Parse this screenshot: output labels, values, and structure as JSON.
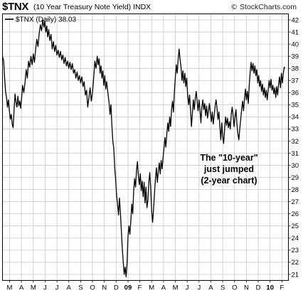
{
  "header": {
    "symbol": "$TNX",
    "description": "(10 Year Treasury Note Yield)",
    "exchange": "INDX",
    "watermark": "StockCharts.com",
    "copyright": "©"
  },
  "chart_data": {
    "type": "line",
    "title": "$TNX (10 Year Treasury Note Yield) INDX",
    "legend": "$TNX (Daily) 38.03",
    "legend_position": "top-left",
    "grid": true,
    "ylim": [
      20.5,
      42.5
    ],
    "y_ticks": [
      21,
      22,
      23,
      24,
      25,
      26,
      27,
      28,
      29,
      30,
      31,
      32,
      33,
      34,
      35,
      36,
      37,
      38,
      39,
      40,
      41,
      42
    ],
    "x_ticks": [
      {
        "label": "M",
        "i": 0.6
      },
      {
        "label": "A",
        "i": 1.6
      },
      {
        "label": "M",
        "i": 2.6
      },
      {
        "label": "J",
        "i": 3.6
      },
      {
        "label": "J",
        "i": 4.6
      },
      {
        "label": "A",
        "i": 5.6
      },
      {
        "label": "S",
        "i": 6.6
      },
      {
        "label": "O",
        "i": 7.6
      },
      {
        "label": "N",
        "i": 8.6
      },
      {
        "label": "D",
        "i": 9.6
      },
      {
        "label": "09",
        "i": 10.6,
        "bold": true
      },
      {
        "label": "F",
        "i": 11.6
      },
      {
        "label": "M",
        "i": 12.6
      },
      {
        "label": "A",
        "i": 13.6
      },
      {
        "label": "M",
        "i": 14.6
      },
      {
        "label": "J",
        "i": 15.6
      },
      {
        "label": "J",
        "i": 16.6
      },
      {
        "label": "A",
        "i": 17.6
      },
      {
        "label": "S",
        "i": 18.6
      },
      {
        "label": "O",
        "i": 19.6
      },
      {
        "label": "N",
        "i": 20.6
      },
      {
        "label": "D",
        "i": 21.6
      },
      {
        "label": "10",
        "i": 22.6,
        "bold": true
      },
      {
        "label": "F",
        "i": 23.6
      }
    ],
    "x_range": [
      0,
      24.15
    ],
    "series": [
      {
        "values": [
          [
            0.0,
            39.0
          ],
          [
            0.1,
            38.6
          ],
          [
            0.18,
            37.2
          ],
          [
            0.26,
            36.1
          ],
          [
            0.34,
            35.6
          ],
          [
            0.42,
            34.8
          ],
          [
            0.5,
            35.4
          ],
          [
            0.58,
            34.5
          ],
          [
            0.66,
            33.8
          ],
          [
            0.74,
            34.2
          ],
          [
            0.82,
            33.4
          ],
          [
            0.9,
            33.1
          ],
          [
            0.98,
            34.6
          ],
          [
            1.06,
            35.9
          ],
          [
            1.14,
            35.2
          ],
          [
            1.22,
            34.8
          ],
          [
            1.3,
            35.7
          ],
          [
            1.38,
            34.9
          ],
          [
            1.46,
            35.3
          ],
          [
            1.54,
            34.7
          ],
          [
            1.62,
            35.6
          ],
          [
            1.7,
            36.6
          ],
          [
            1.8,
            36.0
          ],
          [
            1.9,
            36.8
          ],
          [
            2.0,
            37.9
          ],
          [
            2.1,
            37.2
          ],
          [
            2.2,
            38.6
          ],
          [
            2.3,
            38.1
          ],
          [
            2.4,
            39.0
          ],
          [
            2.5,
            38.3
          ],
          [
            2.6,
            39.2
          ],
          [
            2.7,
            38.5
          ],
          [
            2.8,
            39.6
          ],
          [
            2.9,
            40.4
          ],
          [
            3.0,
            39.8
          ],
          [
            3.1,
            40.9
          ],
          [
            3.2,
            41.6
          ],
          [
            3.3,
            41.1
          ],
          [
            3.4,
            42.0
          ],
          [
            3.5,
            41.4
          ],
          [
            3.58,
            41.9
          ],
          [
            3.66,
            41.0
          ],
          [
            3.74,
            41.5
          ],
          [
            3.82,
            40.6
          ],
          [
            3.9,
            41.2
          ],
          [
            4.0,
            40.3
          ],
          [
            4.1,
            40.8
          ],
          [
            4.2,
            39.6
          ],
          [
            4.3,
            40.2
          ],
          [
            4.4,
            39.4
          ],
          [
            4.5,
            39.9
          ],
          [
            4.6,
            39.1
          ],
          [
            4.7,
            39.5
          ],
          [
            4.8,
            38.9
          ],
          [
            4.9,
            39.4
          ],
          [
            5.0,
            38.7
          ],
          [
            5.1,
            39.1
          ],
          [
            5.2,
            38.4
          ],
          [
            5.3,
            38.9
          ],
          [
            5.4,
            38.2
          ],
          [
            5.5,
            38.6
          ],
          [
            5.6,
            38.0
          ],
          [
            5.7,
            38.5
          ],
          [
            5.8,
            37.9
          ],
          [
            5.9,
            38.4
          ],
          [
            6.0,
            37.6
          ],
          [
            6.1,
            37.9
          ],
          [
            6.2,
            37.2
          ],
          [
            6.3,
            37.7
          ],
          [
            6.4,
            37.0
          ],
          [
            6.5,
            37.4
          ],
          [
            6.6,
            36.8
          ],
          [
            6.7,
            37.3
          ],
          [
            6.8,
            36.5
          ],
          [
            6.9,
            36.9
          ],
          [
            7.0,
            35.8
          ],
          [
            7.1,
            36.2
          ],
          [
            7.2,
            34.8
          ],
          [
            7.3,
            35.6
          ],
          [
            7.4,
            36.4
          ],
          [
            7.5,
            35.3
          ],
          [
            7.6,
            36.0
          ],
          [
            7.7,
            37.2
          ],
          [
            7.8,
            38.6
          ],
          [
            7.9,
            38.0
          ],
          [
            8.0,
            39.0
          ],
          [
            8.08,
            38.3
          ],
          [
            8.16,
            38.8
          ],
          [
            8.24,
            37.6
          ],
          [
            8.32,
            38.2
          ],
          [
            8.4,
            37.2
          ],
          [
            8.48,
            37.8
          ],
          [
            8.56,
            36.6
          ],
          [
            8.64,
            37.4
          ],
          [
            8.72,
            36.3
          ],
          [
            8.8,
            36.9
          ],
          [
            8.9,
            36.0
          ],
          [
            9.0,
            35.2
          ],
          [
            9.08,
            34.2
          ],
          [
            9.16,
            35.0
          ],
          [
            9.24,
            33.3
          ],
          [
            9.32,
            32.0
          ],
          [
            9.4,
            31.4
          ],
          [
            9.48,
            29.8
          ],
          [
            9.56,
            28.8
          ],
          [
            9.64,
            27.5
          ],
          [
            9.72,
            26.8
          ],
          [
            9.8,
            25.9
          ],
          [
            9.88,
            27.3
          ],
          [
            9.96,
            26.1
          ],
          [
            10.04,
            24.6
          ],
          [
            10.12,
            23.1
          ],
          [
            10.2,
            22.0
          ],
          [
            10.28,
            21.0
          ],
          [
            10.36,
            21.6
          ],
          [
            10.44,
            20.8
          ],
          [
            10.52,
            21.9
          ],
          [
            10.6,
            24.1
          ],
          [
            10.68,
            25.0
          ],
          [
            10.76,
            24.3
          ],
          [
            10.84,
            25.4
          ],
          [
            10.92,
            26.8
          ],
          [
            11.0,
            26.0
          ],
          [
            11.08,
            27.9
          ],
          [
            11.16,
            28.9
          ],
          [
            11.24,
            28.2
          ],
          [
            11.32,
            29.6
          ],
          [
            11.4,
            30.3
          ],
          [
            11.48,
            29.1
          ],
          [
            11.56,
            28.4
          ],
          [
            11.64,
            29.3
          ],
          [
            11.72,
            27.9
          ],
          [
            11.8,
            28.7
          ],
          [
            11.88,
            27.4
          ],
          [
            11.96,
            28.6
          ],
          [
            12.04,
            26.9
          ],
          [
            12.12,
            28.2
          ],
          [
            12.2,
            26.5
          ],
          [
            12.28,
            27.1
          ],
          [
            12.36,
            28.6
          ],
          [
            12.44,
            29.4
          ],
          [
            12.52,
            28.1
          ],
          [
            12.6,
            26.2
          ],
          [
            12.68,
            25.3
          ],
          [
            12.76,
            26.4
          ],
          [
            12.84,
            27.7
          ],
          [
            12.92,
            28.9
          ],
          [
            13.0,
            29.8
          ],
          [
            13.08,
            28.6
          ],
          [
            13.16,
            29.5
          ],
          [
            13.24,
            30.2
          ],
          [
            13.32,
            29.3
          ],
          [
            13.4,
            30.4
          ],
          [
            13.48,
            29.7
          ],
          [
            13.56,
            30.6
          ],
          [
            13.64,
            31.4
          ],
          [
            13.72,
            32.3
          ],
          [
            13.8,
            31.5
          ],
          [
            13.88,
            32.6
          ],
          [
            13.96,
            33.5
          ],
          [
            14.04,
            32.8
          ],
          [
            14.12,
            34.0
          ],
          [
            14.2,
            33.2
          ],
          [
            14.28,
            34.6
          ],
          [
            14.36,
            35.3
          ],
          [
            14.44,
            34.4
          ],
          [
            14.52,
            36.1
          ],
          [
            14.6,
            37.3
          ],
          [
            14.68,
            38.3
          ],
          [
            14.76,
            37.6
          ],
          [
            14.84,
            38.8
          ],
          [
            14.92,
            39.6
          ],
          [
            15.0,
            38.7
          ],
          [
            15.08,
            38.1
          ],
          [
            15.16,
            37.0
          ],
          [
            15.24,
            37.8
          ],
          [
            15.32,
            36.8
          ],
          [
            15.4,
            37.6
          ],
          [
            15.48,
            36.5
          ],
          [
            15.56,
            37.2
          ],
          [
            15.64,
            35.8
          ],
          [
            15.72,
            35.0
          ],
          [
            15.8,
            35.8
          ],
          [
            15.88,
            34.6
          ],
          [
            15.96,
            33.2
          ],
          [
            16.04,
            34.3
          ],
          [
            16.12,
            35.4
          ],
          [
            16.2,
            34.6
          ],
          [
            16.28,
            35.5
          ],
          [
            16.36,
            36.1
          ],
          [
            16.44,
            35.3
          ],
          [
            16.52,
            34.5
          ],
          [
            16.6,
            35.4
          ],
          [
            16.68,
            34.6
          ],
          [
            16.76,
            33.5
          ],
          [
            16.84,
            34.8
          ],
          [
            16.92,
            35.4
          ],
          [
            17.0,
            34.6
          ],
          [
            17.08,
            35.1
          ],
          [
            17.16,
            34.1
          ],
          [
            17.24,
            34.9
          ],
          [
            17.32,
            33.9
          ],
          [
            17.4,
            34.5
          ],
          [
            17.48,
            35.1
          ],
          [
            17.56,
            34.3
          ],
          [
            17.64,
            33.6
          ],
          [
            17.72,
            34.4
          ],
          [
            17.8,
            33.4
          ],
          [
            17.88,
            34.1
          ],
          [
            17.96,
            34.9
          ],
          [
            18.04,
            35.4
          ],
          [
            18.12,
            34.7
          ],
          [
            18.2,
            33.8
          ],
          [
            18.28,
            34.4
          ],
          [
            18.36,
            33.2
          ],
          [
            18.44,
            32.1
          ],
          [
            18.52,
            33.5
          ],
          [
            18.6,
            32.4
          ],
          [
            18.68,
            31.8
          ],
          [
            18.76,
            33.0
          ],
          [
            18.84,
            34.0
          ],
          [
            18.92,
            33.3
          ],
          [
            19.0,
            33.9
          ],
          [
            19.08,
            33.1
          ],
          [
            19.16,
            33.6
          ],
          [
            19.24,
            33.0
          ],
          [
            19.32,
            34.2
          ],
          [
            19.4,
            34.8
          ],
          [
            19.48,
            34.1
          ],
          [
            19.56,
            33.2
          ],
          [
            19.64,
            34.0
          ],
          [
            19.72,
            34.6
          ],
          [
            19.8,
            33.4
          ],
          [
            19.88,
            32.6
          ],
          [
            19.96,
            32.1
          ],
          [
            20.04,
            33.0
          ],
          [
            20.12,
            33.8
          ],
          [
            20.2,
            34.6
          ],
          [
            20.28,
            35.3
          ],
          [
            20.36,
            34.5
          ],
          [
            20.44,
            35.5
          ],
          [
            20.52,
            36.3
          ],
          [
            20.6,
            35.4
          ],
          [
            20.68,
            36.1
          ],
          [
            20.76,
            35.1
          ],
          [
            20.84,
            36.6
          ],
          [
            20.92,
            37.7
          ],
          [
            21.0,
            38.5
          ],
          [
            21.08,
            37.8
          ],
          [
            21.16,
            38.4
          ],
          [
            21.24,
            37.6
          ],
          [
            21.32,
            38.2
          ],
          [
            21.4,
            37.4
          ],
          [
            21.48,
            37.9
          ],
          [
            21.56,
            36.8
          ],
          [
            21.64,
            37.4
          ],
          [
            21.72,
            36.5
          ],
          [
            21.8,
            37.0
          ],
          [
            21.88,
            36.1
          ],
          [
            21.96,
            36.7
          ],
          [
            22.04,
            35.8
          ],
          [
            22.12,
            36.4
          ],
          [
            22.2,
            35.6
          ],
          [
            22.28,
            36.2
          ],
          [
            22.36,
            35.4
          ],
          [
            22.44,
            36.2
          ],
          [
            22.52,
            37.0
          ],
          [
            22.6,
            36.4
          ],
          [
            22.68,
            37.1
          ],
          [
            22.76,
            36.2
          ],
          [
            22.84,
            36.6
          ],
          [
            22.92,
            35.9
          ],
          [
            23.0,
            36.4
          ],
          [
            23.08,
            35.6
          ],
          [
            23.16,
            36.5
          ],
          [
            23.24,
            35.8
          ],
          [
            23.32,
            36.7
          ],
          [
            23.4,
            37.3
          ],
          [
            23.48,
            36.4
          ],
          [
            23.56,
            37.6
          ],
          [
            23.64,
            36.8
          ],
          [
            23.72,
            37.6
          ],
          [
            23.8,
            38.1
          ],
          [
            23.85,
            38.03
          ]
        ]
      }
    ],
    "annotations": [
      "The \"10-year\"",
      "just jumped",
      "(2-year chart)"
    ]
  }
}
